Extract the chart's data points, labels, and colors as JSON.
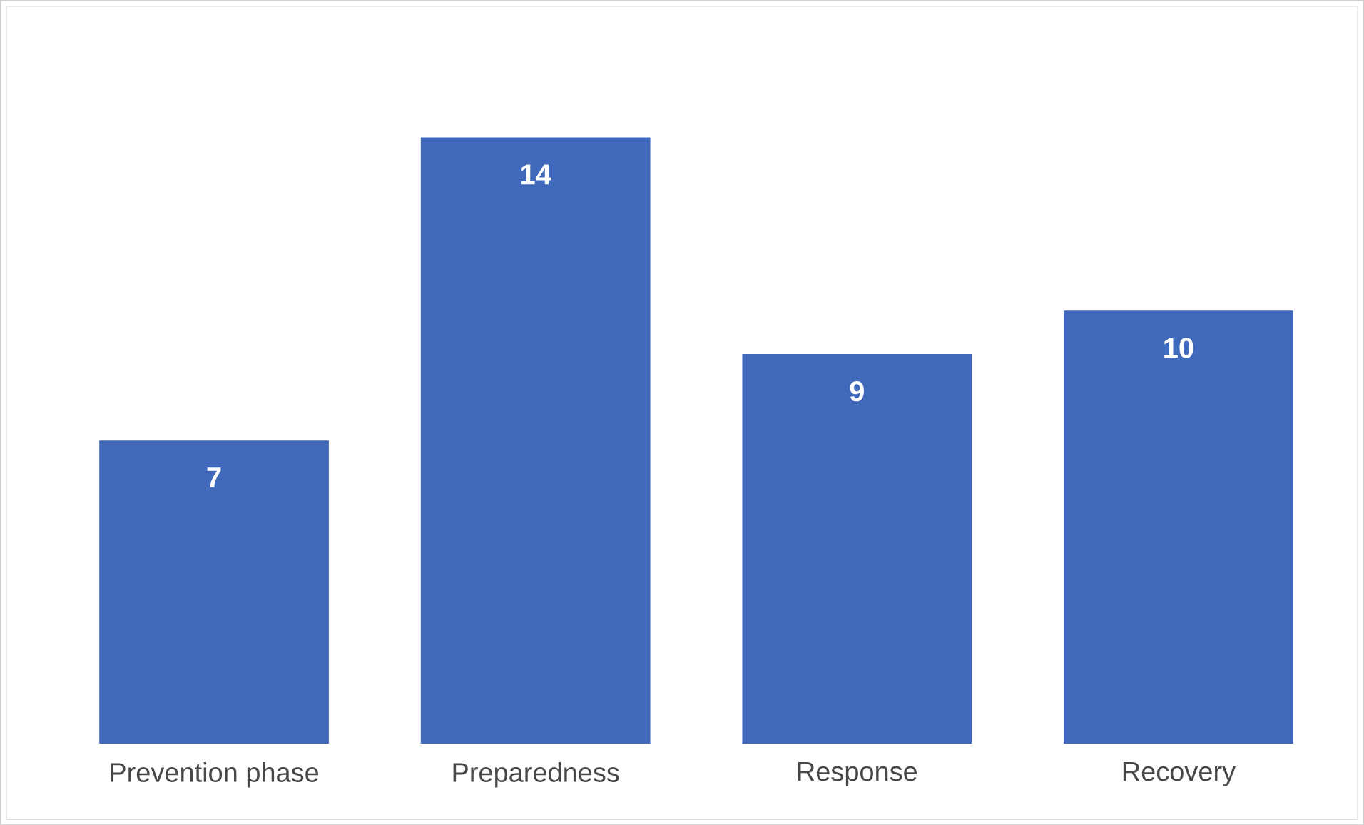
{
  "chart_data": {
    "type": "bar",
    "categories": [
      "Prevention phase",
      "Preparedness",
      "Response",
      "Recovery"
    ],
    "values": [
      7,
      14,
      9,
      10
    ],
    "color": "#4169bb",
    "data_labels": true
  }
}
